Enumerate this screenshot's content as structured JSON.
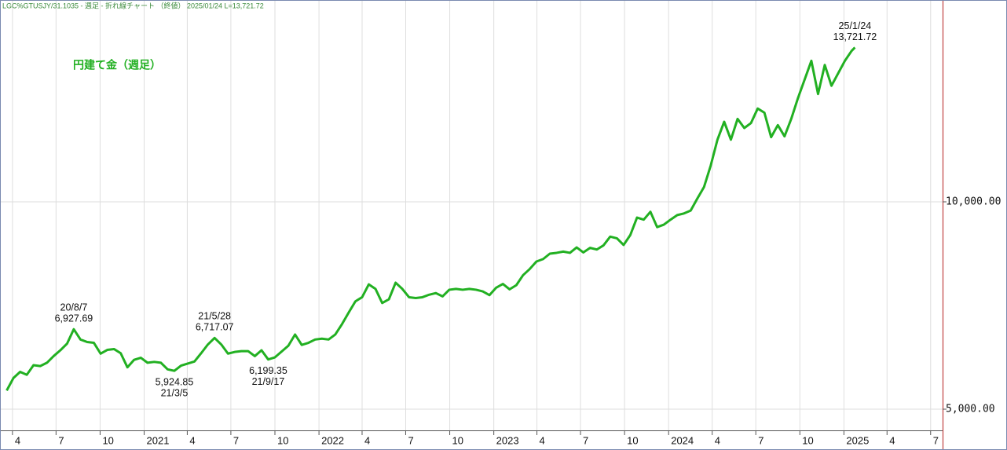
{
  "chart_data": {
    "type": "line",
    "title": "LGC%GTUSJY/31.1035 - 週足 - 折れ線チャート （終値）  2025/01/24 L=13,721.72",
    "subtitle": "円建て金（週足）",
    "color": "#22b022",
    "grid": true,
    "yaxis_side": "right",
    "xlim": [
      "2020-03-06",
      "2025-07-26"
    ],
    "ylim": [
      4489,
      14867
    ],
    "yticks": [
      {
        "value": 5000,
        "label": "5,000.00"
      },
      {
        "value": 10000,
        "label": "10,000.00"
      }
    ],
    "xticks": [
      {
        "value": "2020-04-01",
        "label": "4"
      },
      {
        "value": "2020-07-01",
        "label": "7"
      },
      {
        "value": "2020-10-01",
        "label": "10"
      },
      {
        "value": "2021-01-01",
        "label": "2021"
      },
      {
        "value": "2021-04-01",
        "label": "4"
      },
      {
        "value": "2021-07-01",
        "label": "7"
      },
      {
        "value": "2021-10-01",
        "label": "10"
      },
      {
        "value": "2022-01-01",
        "label": "2022"
      },
      {
        "value": "2022-04-01",
        "label": "4"
      },
      {
        "value": "2022-07-01",
        "label": "7"
      },
      {
        "value": "2022-10-01",
        "label": "10"
      },
      {
        "value": "2023-01-01",
        "label": "2023"
      },
      {
        "value": "2023-04-01",
        "label": "4"
      },
      {
        "value": "2023-07-01",
        "label": "7"
      },
      {
        "value": "2023-10-01",
        "label": "10"
      },
      {
        "value": "2024-01-01",
        "label": "2024"
      },
      {
        "value": "2024-04-01",
        "label": "4"
      },
      {
        "value": "2024-07-01",
        "label": "7"
      },
      {
        "value": "2024-10-01",
        "label": "10"
      },
      {
        "value": "2025-01-01",
        "label": "2025"
      },
      {
        "value": "2025-04-01",
        "label": "4"
      },
      {
        "value": "2025-07-01",
        "label": "7"
      }
    ],
    "x": [
      "2020-03-20",
      "2020-04-03",
      "2020-04-17",
      "2020-05-01",
      "2020-05-15",
      "2020-05-29",
      "2020-06-12",
      "2020-06-26",
      "2020-07-10",
      "2020-07-24",
      "2020-08-07",
      "2020-08-21",
      "2020-09-04",
      "2020-09-18",
      "2020-10-02",
      "2020-10-16",
      "2020-10-30",
      "2020-11-13",
      "2020-11-27",
      "2020-12-11",
      "2020-12-25",
      "2021-01-08",
      "2021-01-22",
      "2021-02-05",
      "2021-02-19",
      "2021-03-05",
      "2021-03-19",
      "2021-04-02",
      "2021-04-16",
      "2021-04-30",
      "2021-05-14",
      "2021-05-28",
      "2021-06-11",
      "2021-06-25",
      "2021-07-09",
      "2021-07-23",
      "2021-08-06",
      "2021-08-20",
      "2021-09-03",
      "2021-09-17",
      "2021-10-01",
      "2021-10-15",
      "2021-10-29",
      "2021-11-12",
      "2021-11-26",
      "2021-12-10",
      "2021-12-24",
      "2022-01-07",
      "2022-01-21",
      "2022-02-04",
      "2022-02-18",
      "2022-03-04",
      "2022-03-18",
      "2022-04-01",
      "2022-04-15",
      "2022-04-29",
      "2022-05-13",
      "2022-05-27",
      "2022-06-10",
      "2022-06-24",
      "2022-07-08",
      "2022-07-22",
      "2022-08-05",
      "2022-08-19",
      "2022-09-02",
      "2022-09-16",
      "2022-09-30",
      "2022-10-14",
      "2022-10-28",
      "2022-11-11",
      "2022-11-25",
      "2022-12-09",
      "2022-12-23",
      "2023-01-06",
      "2023-01-20",
      "2023-02-03",
      "2023-02-17",
      "2023-03-03",
      "2023-03-17",
      "2023-03-31",
      "2023-04-14",
      "2023-04-28",
      "2023-05-12",
      "2023-05-26",
      "2023-06-09",
      "2023-06-23",
      "2023-07-07",
      "2023-07-21",
      "2023-08-04",
      "2023-08-18",
      "2023-09-01",
      "2023-09-15",
      "2023-09-29",
      "2023-10-13",
      "2023-10-27",
      "2023-11-10",
      "2023-11-24",
      "2023-12-08",
      "2023-12-22",
      "2024-01-05",
      "2024-01-19",
      "2024-02-02",
      "2024-02-16",
      "2024-03-01",
      "2024-03-15",
      "2024-03-29",
      "2024-04-12",
      "2024-04-26",
      "2024-05-10",
      "2024-05-24",
      "2024-06-07",
      "2024-06-21",
      "2024-07-05",
      "2024-07-19",
      "2024-08-02",
      "2024-08-16",
      "2024-08-30",
      "2024-09-13",
      "2024-09-27",
      "2024-10-11",
      "2024-10-25",
      "2024-11-08",
      "2024-11-22",
      "2024-12-06",
      "2024-12-20",
      "2025-01-03",
      "2025-01-17",
      "2025-01-24"
    ],
    "values": [
      5450,
      5750,
      5900,
      5830,
      6060,
      6040,
      6120,
      6280,
      6420,
      6580,
      6927.69,
      6680,
      6620,
      6600,
      6340,
      6430,
      6450,
      6350,
      6010,
      6190,
      6240,
      6120,
      6140,
      6120,
      5960,
      5924.85,
      6050,
      6100,
      6150,
      6350,
      6560,
      6717.07,
      6560,
      6340,
      6380,
      6400,
      6400,
      6280,
      6420,
      6199.35,
      6250,
      6390,
      6530,
      6800,
      6550,
      6600,
      6680,
      6700,
      6680,
      6800,
      7050,
      7330,
      7600,
      7700,
      8010,
      7900,
      7560,
      7650,
      8050,
      7900,
      7700,
      7680,
      7700,
      7760,
      7800,
      7720,
      7880,
      7900,
      7880,
      7900,
      7880,
      7840,
      7750,
      7930,
      8020,
      7890,
      7990,
      8230,
      8380,
      8560,
      8620,
      8750,
      8770,
      8800,
      8770,
      8900,
      8780,
      8890,
      8850,
      8950,
      9160,
      9120,
      8960,
      9200,
      9620,
      9570,
      9760,
      9390,
      9450,
      9570,
      9680,
      9720,
      9790,
      10080,
      10360,
      10880,
      11500,
      11930,
      11500,
      12000,
      11780,
      11900,
      12250,
      12150,
      11560,
      11850,
      11580,
      12000,
      12500,
      12950,
      13400,
      12600,
      13300,
      12800,
      13100,
      13400,
      13640,
      13721.72
    ],
    "annotations": [
      {
        "date_label": "20/8/7",
        "value_label": "6,927.69",
        "x": "2020-08-07",
        "y": 6927.69,
        "position": "above"
      },
      {
        "date_label": "21/3/5",
        "value_label": "5,924.85",
        "x": "2021-03-05",
        "y": 5924.85,
        "position": "below"
      },
      {
        "date_label": "21/5/28",
        "value_label": "6,717.07",
        "x": "2021-05-28",
        "y": 6717.07,
        "position": "above"
      },
      {
        "date_label": "21/9/17",
        "value_label": "6,199.35",
        "x": "2021-09-17",
        "y": 6199.35,
        "position": "below"
      },
      {
        "date_label": "25/1/24",
        "value_label": "13,721.72",
        "x": "2025-01-24",
        "y": 13721.72,
        "position": "above"
      }
    ]
  }
}
